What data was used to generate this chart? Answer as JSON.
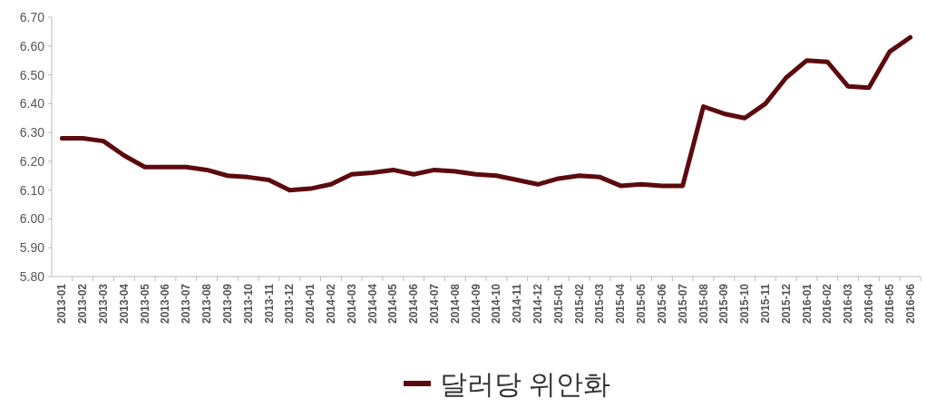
{
  "chart_data": {
    "type": "line",
    "categories": [
      "2013-01",
      "2013-02",
      "2013-03",
      "2013-04",
      "2013-05",
      "2013-06",
      "2013-07",
      "2013-08",
      "2013-09",
      "2013-10",
      "2013-11",
      "2013-12",
      "2014-01",
      "2014-02",
      "2014-03",
      "2014-04",
      "2014-05",
      "2014-06",
      "2014-07",
      "2014-08",
      "2014-09",
      "2014-10",
      "2014-11",
      "2014-12",
      "2015-01",
      "2015-02",
      "2015-03",
      "2015-04",
      "2015-05",
      "2015-06",
      "2015-07",
      "2015-08",
      "2015-09",
      "2015-10",
      "2015-11",
      "2015-12",
      "2016-01",
      "2016-02",
      "2016-03",
      "2016-04",
      "2016-05",
      "2016-06"
    ],
    "series": [
      {
        "name": "달러당 위안화",
        "color": "#5c0a0e",
        "values": [
          6.28,
          6.28,
          6.27,
          6.22,
          6.18,
          6.18,
          6.18,
          6.17,
          6.15,
          6.145,
          6.135,
          6.1,
          6.105,
          6.12,
          6.155,
          6.16,
          6.17,
          6.155,
          6.17,
          6.165,
          6.155,
          6.15,
          6.135,
          6.12,
          6.14,
          6.15,
          6.145,
          6.115,
          6.12,
          6.115,
          6.115,
          6.39,
          6.365,
          6.35,
          6.4,
          6.49,
          6.55,
          6.545,
          6.46,
          6.455,
          6.58,
          6.63
        ]
      }
    ],
    "ylim": [
      5.8,
      6.7
    ],
    "yticks": [
      {
        "value": 5.8,
        "label": "5.80"
      },
      {
        "value": 5.9,
        "label": "5.90"
      },
      {
        "value": 6.0,
        "label": "6.00"
      },
      {
        "value": 6.1,
        "label": "6.10"
      },
      {
        "value": 6.2,
        "label": "6.20"
      },
      {
        "value": 6.3,
        "label": "6.30"
      },
      {
        "value": 6.4,
        "label": "6.40"
      },
      {
        "value": 6.5,
        "label": "6.50"
      },
      {
        "value": 6.6,
        "label": "6.60"
      },
      {
        "value": 6.7,
        "label": "6.70"
      }
    ],
    "legend": "bottom"
  }
}
